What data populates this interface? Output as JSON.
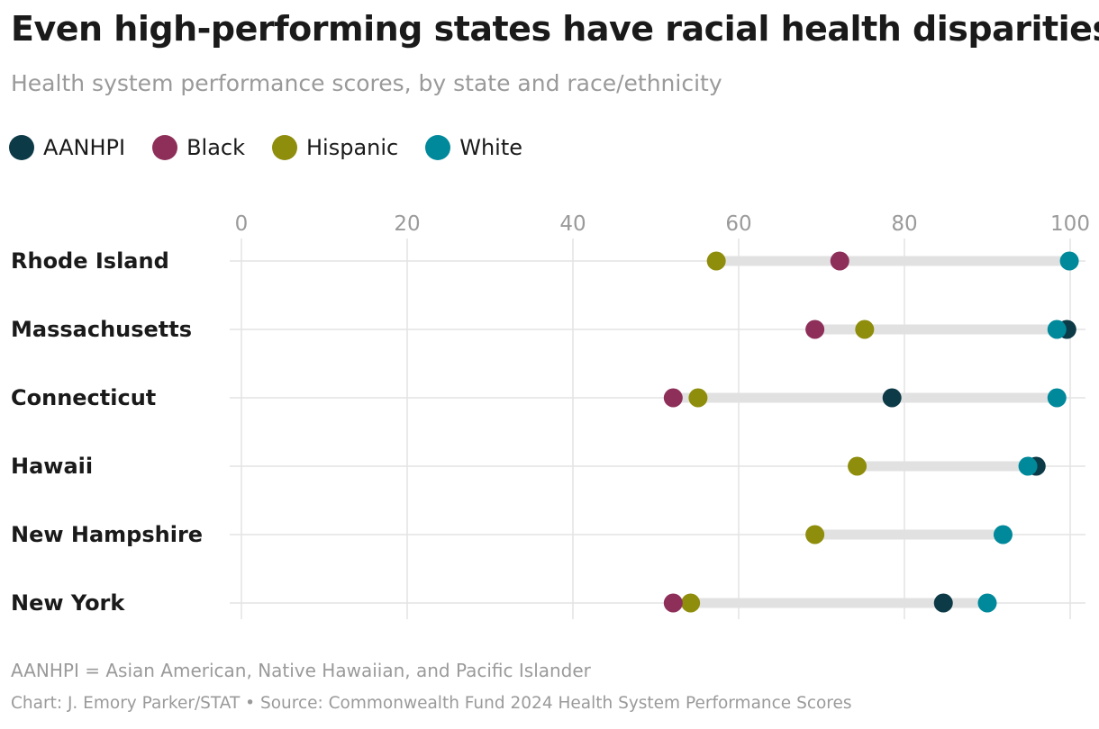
{
  "title": "Even high-performing states have racial health disparities",
  "subtitle": "Health system performance scores, by state and race/ethnicity",
  "note": "AANHPI = Asian American, Native Hawaiian, and Pacific Islander",
  "credit": "Chart: J. Emory Parker/STAT • Source: Commonwealth Fund 2024 Health System Performance Scores",
  "chart_data": {
    "type": "dot-range",
    "categories": [
      "Rhode Island",
      "Massachusetts",
      "Connecticut",
      "Hawaii",
      "New Hampshire",
      "New York"
    ],
    "xlim": [
      0,
      100
    ],
    "xticks": [
      0,
      20,
      40,
      60,
      80,
      100
    ],
    "grid": true,
    "legend_position": "top-left",
    "series": [
      {
        "name": "AANHPI",
        "color": "#0d3a47",
        "values": [
          null,
          99.6,
          78.5,
          95.9,
          null,
          84.7
        ]
      },
      {
        "name": "Black",
        "color": "#8e2f5a",
        "values": [
          72.2,
          69.2,
          52.1,
          null,
          null,
          52.1
        ]
      },
      {
        "name": "Hispanic",
        "color": "#8f8d0c",
        "values": [
          57.3,
          75.2,
          55.1,
          74.3,
          69.2,
          54.2
        ]
      },
      {
        "name": "White",
        "color": "#00899b",
        "values": [
          99.9,
          98.4,
          98.4,
          94.9,
          91.9,
          90.0
        ]
      }
    ]
  }
}
